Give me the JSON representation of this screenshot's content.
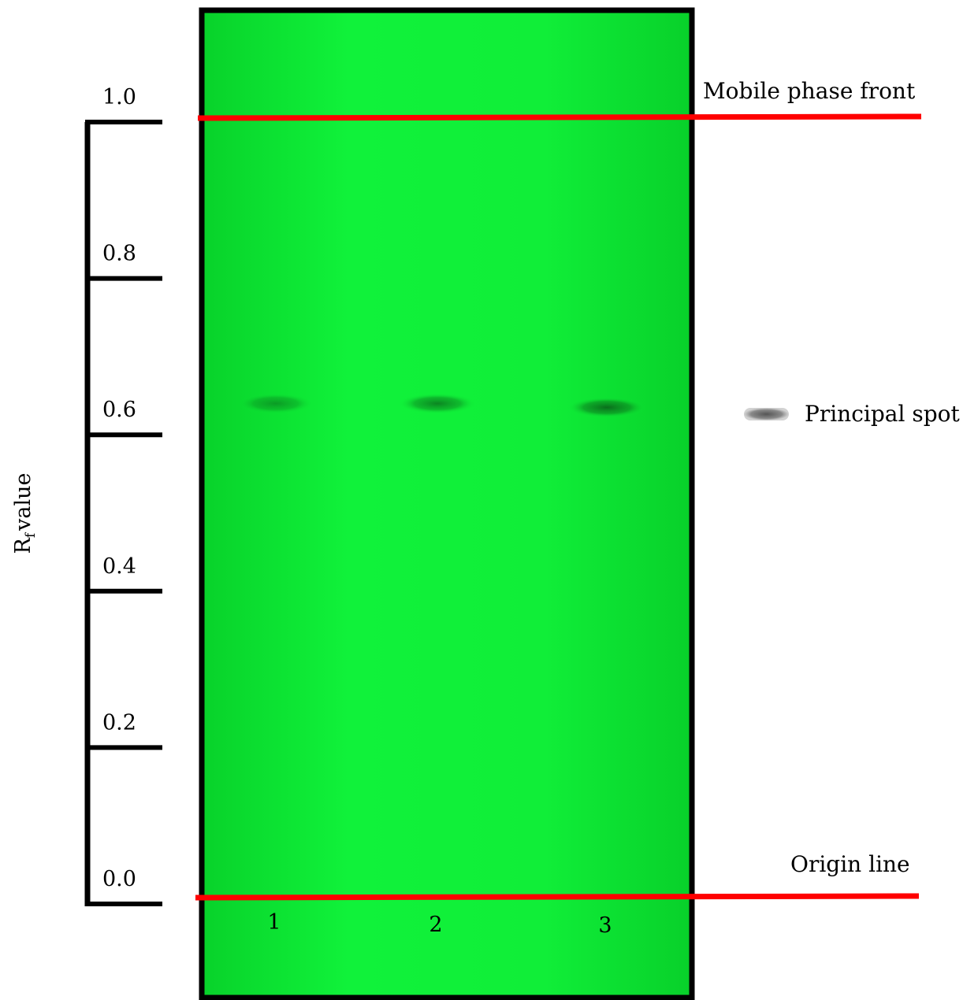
{
  "axis": {
    "label_main": "R",
    "label_sub": "f",
    "label_rest": "value",
    "ticks": [
      {
        "value": 1.0,
        "label": "1.0"
      },
      {
        "value": 0.8,
        "label": "0.8"
      },
      {
        "value": 0.6,
        "label": "0.6"
      },
      {
        "value": 0.4,
        "label": "0.4"
      },
      {
        "value": 0.2,
        "label": "0.2"
      },
      {
        "value": 0.0,
        "label": "0.0"
      }
    ]
  },
  "plate": {
    "color": "#0fe836",
    "border_color": "#000000",
    "lanes": [
      {
        "label": "1",
        "spot_rf": 0.64,
        "intensity": 0.55
      },
      {
        "label": "2",
        "spot_rf": 0.64,
        "intensity": 0.75
      },
      {
        "label": "3",
        "spot_rf": 0.635,
        "intensity": 0.9
      }
    ]
  },
  "lines": {
    "color": "#ff0000",
    "front_label": "Mobile phase front",
    "origin_label": "Origin line"
  },
  "legend": {
    "spot_label": "Principal spot"
  }
}
